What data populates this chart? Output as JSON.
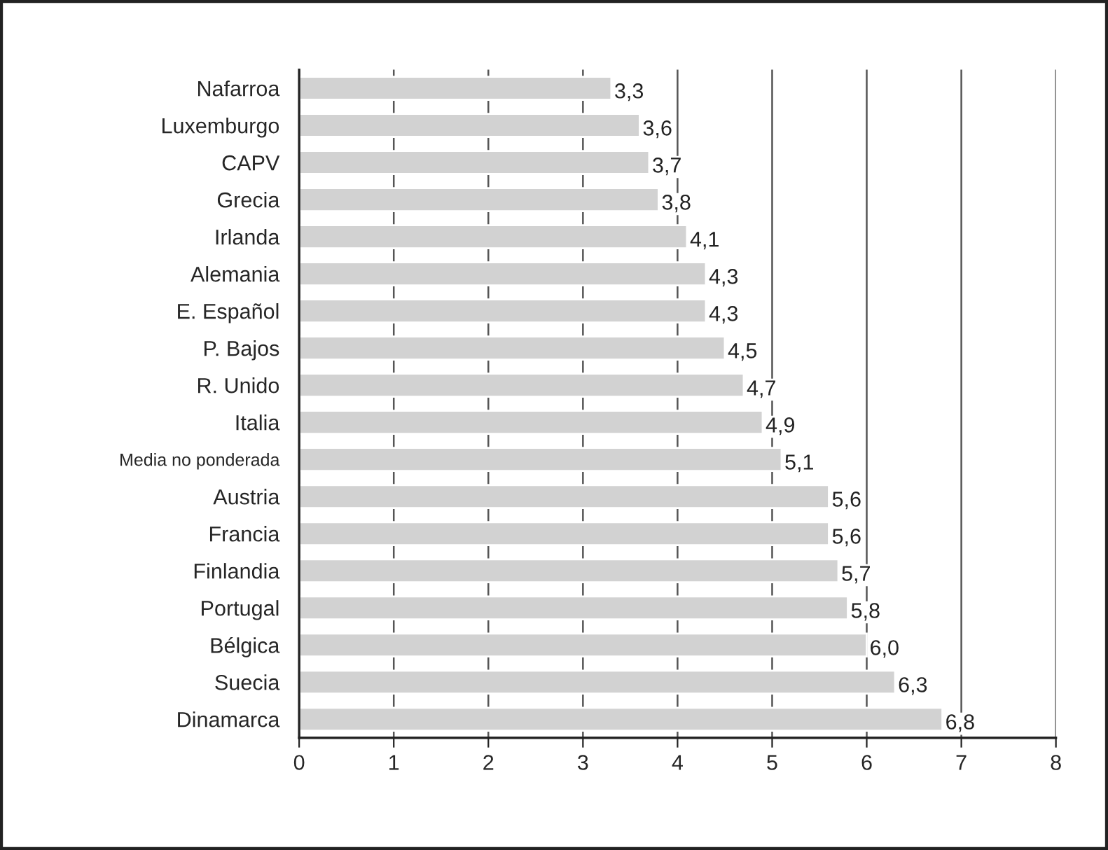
{
  "chart_data": {
    "type": "bar",
    "orientation": "horizontal",
    "categories": [
      "Nafarroa",
      "Luxemburgo",
      "CAPV",
      "Grecia",
      "Irlanda",
      "Alemania",
      "E. Español",
      "P. Bajos",
      "R. Unido",
      "Italia",
      "Media no ponderada",
      "Austria",
      "Francia",
      "Finlandia",
      "Portugal",
      "Bélgica",
      "Suecia",
      "Dinamarca"
    ],
    "values": [
      3.3,
      3.6,
      3.7,
      3.8,
      4.1,
      4.3,
      4.3,
      4.5,
      4.7,
      4.9,
      5.1,
      5.6,
      5.6,
      5.7,
      5.8,
      6.0,
      6.3,
      6.8
    ],
    "value_labels": [
      "3,3",
      "3,6",
      "3,7",
      "3,8",
      "4,1",
      "4,3",
      "4,3",
      "4,5",
      "4,7",
      "4,9",
      "5,1",
      "5,6",
      "5,6",
      "5,7",
      "5,8",
      "6,0",
      "6,3",
      "6,8"
    ],
    "color": "#d2d2d2",
    "xlim": [
      0,
      8
    ],
    "xticks": [
      0,
      1,
      2,
      3,
      4,
      5,
      6,
      7,
      8
    ],
    "grid": "x",
    "legend": false
  }
}
